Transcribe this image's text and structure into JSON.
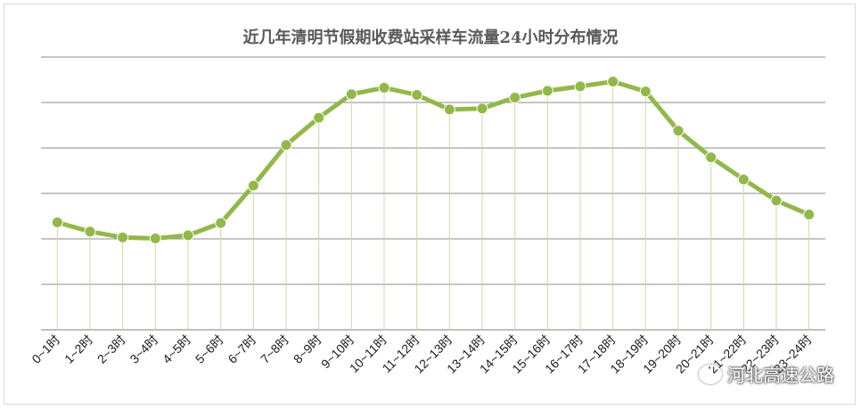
{
  "chart_data": {
    "type": "line",
    "title": "近几年清明节假期收费站采样车流量24小时分布情况",
    "categories": [
      "0~1时",
      "1~2时",
      "2~3时",
      "3~4时",
      "4~5时",
      "5~6时",
      "6~7时",
      "7~8时",
      "8~9时",
      "9~10时",
      "10~11时",
      "11~12时",
      "12~13时",
      "13~14时",
      "14~15时",
      "15~16时",
      "16~17时",
      "17~18时",
      "18~19时",
      "19~20时",
      "20~21时",
      "21~22时",
      "22~23时",
      "23~24时"
    ],
    "values": [
      31.5,
      28.8,
      27.1,
      26.8,
      27.7,
      31.3,
      42.3,
      54.2,
      62.2,
      69.1,
      71.0,
      68.9,
      64.6,
      64.9,
      68.1,
      70.1,
      71.4,
      72.8,
      69.9,
      58.4,
      50.6,
      44.1,
      37.9,
      33.8
    ],
    "ylim": [
      0,
      80
    ],
    "gridlines": 6,
    "y_tick_labels_shown": false,
    "color": "#92b849"
  },
  "watermark": "河北高速公路"
}
